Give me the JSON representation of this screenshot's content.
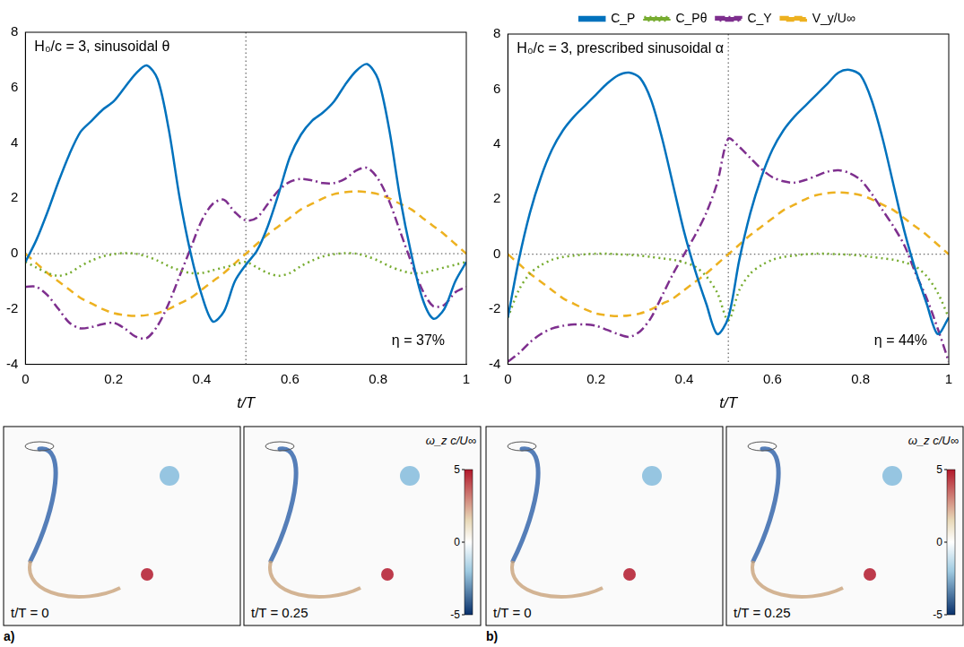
{
  "chart_data": [
    {
      "panel": "a)",
      "type": "line",
      "title": "H₀/c = 3, sinusoidal θ",
      "annotation": "η = 37%",
      "x_label": "t/T",
      "x": [
        0,
        0.025,
        0.05,
        0.075,
        0.1,
        0.125,
        0.15,
        0.175,
        0.2,
        0.225,
        0.25,
        0.275,
        0.3,
        0.325,
        0.35,
        0.375,
        0.4,
        0.425,
        0.45,
        0.475,
        0.5,
        0.525,
        0.55,
        0.575,
        0.6,
        0.625,
        0.65,
        0.675,
        0.7,
        0.725,
        0.75,
        0.775,
        0.8,
        0.825,
        0.85,
        0.875,
        0.9,
        0.925,
        0.95,
        0.975,
        1
      ],
      "xlim": [
        0,
        1
      ],
      "xticks": [
        0,
        0.2,
        0.4,
        0.6,
        0.8,
        1
      ],
      "ylim": [
        -4,
        8
      ],
      "yticks": [
        -4,
        -2,
        0,
        2,
        4,
        6,
        8
      ],
      "grid": false,
      "vline": 0.5,
      "hline": 0,
      "series": [
        {
          "name": "C_P",
          "color": "#0072BD",
          "line_style": "solid",
          "values": [
            -0.3,
            0.5,
            1.5,
            2.6,
            3.6,
            4.4,
            4.8,
            5.2,
            5.5,
            6.0,
            6.5,
            6.8,
            6.3,
            4.5,
            2.0,
            0.0,
            -1.5,
            -2.45,
            -2.1,
            -1.0,
            -0.4,
            0.1,
            1.0,
            2.2,
            3.5,
            4.3,
            4.8,
            5.1,
            5.5,
            6.1,
            6.6,
            6.85,
            6.3,
            4.5,
            2.0,
            0.0,
            -1.6,
            -2.35,
            -2.0,
            -1.0,
            -0.3
          ]
        },
        {
          "name": "C_Pθ",
          "color": "#77AC30",
          "line_style": "dotted",
          "values": [
            -0.3,
            -0.5,
            -0.7,
            -0.8,
            -0.7,
            -0.45,
            -0.25,
            -0.1,
            -0.02,
            0.02,
            0,
            -0.1,
            -0.25,
            -0.45,
            -0.6,
            -0.7,
            -0.7,
            -0.6,
            -0.5,
            -0.4,
            -0.3,
            -0.5,
            -0.7,
            -0.8,
            -0.7,
            -0.45,
            -0.25,
            -0.1,
            -0.02,
            0.02,
            0,
            -0.1,
            -0.25,
            -0.45,
            -0.6,
            -0.7,
            -0.7,
            -0.6,
            -0.5,
            -0.4,
            -0.3
          ]
        },
        {
          "name": "C_Y",
          "color": "#7E2F8E",
          "line_style": "dashdot",
          "values": [
            -1.2,
            -1.2,
            -1.5,
            -2.0,
            -2.5,
            -2.7,
            -2.65,
            -2.55,
            -2.5,
            -2.7,
            -3.0,
            -3.05,
            -2.6,
            -1.8,
            -0.8,
            0.2,
            1.2,
            1.8,
            1.95,
            1.5,
            1.2,
            1.3,
            1.8,
            2.3,
            2.6,
            2.7,
            2.65,
            2.55,
            2.55,
            2.7,
            3.0,
            3.1,
            2.7,
            1.9,
            0.8,
            -0.3,
            -1.3,
            -1.9,
            -1.85,
            -1.4,
            -1.2
          ]
        },
        {
          "name": "V_y/U∞",
          "color": "#EDB120",
          "line_style": "dashed",
          "values": [
            0,
            -0.35,
            -0.7,
            -1.0,
            -1.3,
            -1.6,
            -1.8,
            -2.0,
            -2.15,
            -2.22,
            -2.25,
            -2.22,
            -2.15,
            -2.0,
            -1.8,
            -1.6,
            -1.3,
            -1.0,
            -0.7,
            -0.35,
            0,
            0.35,
            0.7,
            1.0,
            1.3,
            1.6,
            1.8,
            2.0,
            2.15,
            2.22,
            2.25,
            2.22,
            2.15,
            2.0,
            1.8,
            1.6,
            1.3,
            1.0,
            0.7,
            0.35,
            0
          ]
        }
      ],
      "snapshots": [
        "t/T = 0",
        "t/T = 0.25"
      ],
      "colorbar": {
        "label": "ω_z c/U∞",
        "range": [
          -5,
          5
        ],
        "ticks": [
          -5,
          0,
          5
        ]
      }
    },
    {
      "panel": "b)",
      "type": "line",
      "title": "H₀/c = 3, prescribed sinusoidal α",
      "annotation": "η = 44%",
      "x_label": "t/T",
      "x": [
        0,
        0.025,
        0.05,
        0.075,
        0.1,
        0.125,
        0.15,
        0.175,
        0.2,
        0.225,
        0.25,
        0.275,
        0.3,
        0.325,
        0.35,
        0.375,
        0.4,
        0.425,
        0.45,
        0.475,
        0.5,
        0.525,
        0.55,
        0.575,
        0.6,
        0.625,
        0.65,
        0.675,
        0.7,
        0.725,
        0.75,
        0.775,
        0.8,
        0.825,
        0.85,
        0.875,
        0.9,
        0.925,
        0.95,
        0.975,
        1
      ],
      "xlim": [
        0,
        1
      ],
      "xticks": [
        0,
        0.2,
        0.4,
        0.6,
        0.8,
        1
      ],
      "ylim": [
        -4,
        8
      ],
      "yticks": [
        -4,
        -2,
        0,
        2,
        4,
        6,
        8
      ],
      "grid": false,
      "vline": 0.5,
      "hline": 0,
      "legend": "top",
      "series": [
        {
          "name": "C_P",
          "color": "#0072BD",
          "line_style": "solid",
          "values": [
            -2.3,
            -0.2,
            1.5,
            2.8,
            3.8,
            4.5,
            5.0,
            5.4,
            5.8,
            6.2,
            6.5,
            6.6,
            6.4,
            5.6,
            4.2,
            2.5,
            0.8,
            -0.6,
            -1.8,
            -2.9,
            -2.3,
            -0.2,
            1.5,
            2.8,
            3.8,
            4.5,
            5.0,
            5.4,
            5.8,
            6.2,
            6.6,
            6.7,
            6.5,
            5.6,
            4.2,
            2.5,
            0.8,
            -0.6,
            -1.8,
            -2.9,
            -2.3
          ]
        },
        {
          "name": "C_Pθ",
          "color": "#77AC30",
          "line_style": "dotted",
          "values": [
            -2.3,
            -1.3,
            -0.7,
            -0.4,
            -0.2,
            -0.1,
            -0.05,
            0,
            0.02,
            0.02,
            0,
            -0.02,
            -0.05,
            -0.1,
            -0.15,
            -0.2,
            -0.3,
            -0.45,
            -0.8,
            -1.4,
            -2.4,
            -1.3,
            -0.7,
            -0.4,
            -0.2,
            -0.1,
            -0.05,
            0,
            0.02,
            0.02,
            0,
            -0.02,
            -0.05,
            -0.1,
            -0.15,
            -0.2,
            -0.3,
            -0.45,
            -0.8,
            -1.4,
            -2.3
          ]
        },
        {
          "name": "C_Y",
          "color": "#7E2F8E",
          "line_style": "dashdot",
          "values": [
            -3.9,
            -3.6,
            -3.2,
            -2.9,
            -2.7,
            -2.6,
            -2.55,
            -2.55,
            -2.6,
            -2.75,
            -2.9,
            -3.0,
            -2.8,
            -2.3,
            -1.5,
            -0.7,
            0.0,
            0.7,
            1.5,
            2.6,
            4.2,
            3.9,
            3.5,
            3.1,
            2.8,
            2.65,
            2.6,
            2.7,
            2.85,
            3.0,
            3.05,
            2.95,
            2.7,
            2.2,
            1.6,
            1.0,
            0.3,
            -0.7,
            -1.6,
            -2.7,
            -3.9
          ]
        },
        {
          "name": "V_y/U∞",
          "color": "#EDB120",
          "line_style": "dashed",
          "values": [
            0,
            -0.35,
            -0.7,
            -1.0,
            -1.3,
            -1.6,
            -1.8,
            -2.0,
            -2.15,
            -2.22,
            -2.25,
            -2.22,
            -2.15,
            -2.0,
            -1.8,
            -1.6,
            -1.3,
            -1.0,
            -0.7,
            -0.35,
            0,
            0.35,
            0.7,
            1.0,
            1.3,
            1.6,
            1.8,
            2.0,
            2.15,
            2.22,
            2.25,
            2.22,
            2.15,
            2.0,
            1.8,
            1.6,
            1.3,
            1.0,
            0.7,
            0.35,
            0
          ]
        }
      ],
      "snapshots": [
        "t/T = 0",
        "t/T = 0.25"
      ],
      "colorbar": {
        "label": "ω_z c/U∞",
        "range": [
          -5,
          5
        ],
        "ticks": [
          -5,
          0,
          5
        ]
      }
    }
  ]
}
